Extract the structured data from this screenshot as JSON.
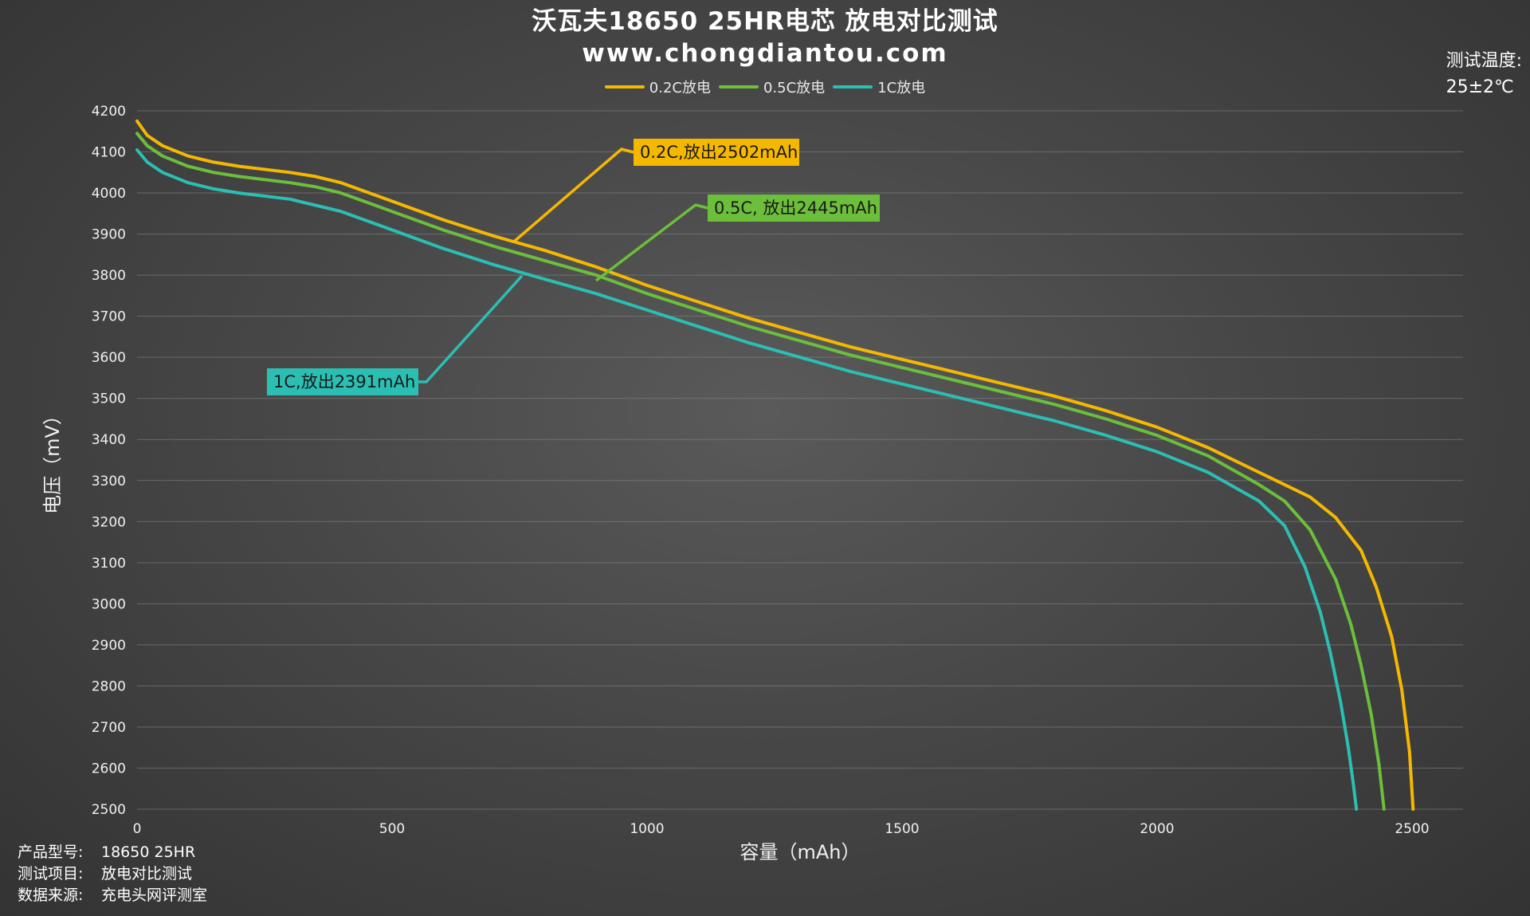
{
  "title": "沃瓦夫18650 25HR电芯 放电对比测试",
  "subtitle": "www.chongdiantou.com",
  "temperature": {
    "label": "测试温度:",
    "value": "25±2℃"
  },
  "info": [
    {
      "label": "产品型号:",
      "value": "18650 25HR"
    },
    {
      "label": "测试项目:",
      "value": "放电对比测试"
    },
    {
      "label": "数据来源:",
      "value": "充电头网评测室"
    }
  ],
  "legend": [
    {
      "name": "0.2C放电",
      "color": "#f5b800"
    },
    {
      "name": "0.5C放电",
      "color": "#6cbf3a"
    },
    {
      "name": "1C放电",
      "color": "#2bbfb3"
    }
  ],
  "annotations": [
    {
      "text": "0.2C,放出2502mAh",
      "series": 0,
      "bg": "#f5b800",
      "fg": "#1a1a1a"
    },
    {
      "text": "0.5C, 放出2445mAh",
      "series": 1,
      "bg": "#6cbf3a",
      "fg": "#1a1a1a"
    },
    {
      "text": "1C,放出2391mAh",
      "series": 2,
      "bg": "#2bbfb3",
      "fg": "#1a1a1a"
    }
  ],
  "chart_data": {
    "type": "line",
    "xlabel": "容量（mAh）",
    "ylabel": "电压（mV）",
    "xlim": [
      0,
      2600
    ],
    "ylim": [
      2500,
      4200
    ],
    "xticks": [
      0,
      500,
      1000,
      1500,
      2000,
      2500
    ],
    "yticks": [
      2500,
      2600,
      2700,
      2800,
      2900,
      3000,
      3100,
      3200,
      3300,
      3400,
      3500,
      3600,
      3700,
      3800,
      3900,
      4000,
      4100,
      4200
    ],
    "grid": true,
    "legend_position": "top",
    "series": [
      {
        "name": "0.2C放电",
        "color": "#f5b800",
        "x": [
          0,
          20,
          50,
          100,
          150,
          200,
          300,
          350,
          400,
          500,
          600,
          700,
          800,
          900,
          1000,
          1100,
          1200,
          1300,
          1400,
          1500,
          1600,
          1700,
          1800,
          1900,
          2000,
          2100,
          2200,
          2250,
          2300,
          2350,
          2400,
          2430,
          2460,
          2480,
          2495,
          2502
        ],
        "y": [
          4175,
          4140,
          4115,
          4090,
          4075,
          4065,
          4050,
          4040,
          4025,
          3980,
          3935,
          3895,
          3860,
          3820,
          3775,
          3735,
          3695,
          3660,
          3625,
          3595,
          3565,
          3535,
          3505,
          3470,
          3430,
          3380,
          3320,
          3290,
          3260,
          3210,
          3130,
          3040,
          2920,
          2790,
          2640,
          2500
        ]
      },
      {
        "name": "0.5C放电",
        "color": "#6cbf3a",
        "x": [
          0,
          20,
          50,
          100,
          150,
          200,
          300,
          350,
          400,
          500,
          600,
          700,
          800,
          900,
          1000,
          1100,
          1200,
          1300,
          1400,
          1500,
          1600,
          1700,
          1800,
          1900,
          2000,
          2100,
          2200,
          2250,
          2300,
          2350,
          2380,
          2400,
          2420,
          2435,
          2445
        ],
        "y": [
          4145,
          4115,
          4090,
          4065,
          4050,
          4040,
          4025,
          4015,
          4000,
          3955,
          3910,
          3870,
          3835,
          3800,
          3755,
          3715,
          3675,
          3640,
          3605,
          3575,
          3545,
          3515,
          3485,
          3450,
          3410,
          3360,
          3290,
          3250,
          3180,
          3060,
          2950,
          2850,
          2730,
          2610,
          2500
        ]
      },
      {
        "name": "1C放电",
        "color": "#2bbfb3",
        "x": [
          0,
          20,
          50,
          100,
          150,
          200,
          300,
          350,
          400,
          500,
          600,
          700,
          800,
          900,
          1000,
          1100,
          1200,
          1300,
          1400,
          1500,
          1600,
          1700,
          1800,
          1900,
          2000,
          2100,
          2200,
          2250,
          2290,
          2320,
          2340,
          2360,
          2375,
          2385,
          2391
        ],
        "y": [
          4105,
          4075,
          4050,
          4025,
          4010,
          4000,
          3985,
          3970,
          3955,
          3910,
          3865,
          3825,
          3790,
          3755,
          3715,
          3675,
          3635,
          3600,
          3565,
          3535,
          3505,
          3475,
          3445,
          3410,
          3370,
          3320,
          3250,
          3190,
          3090,
          2980,
          2880,
          2760,
          2650,
          2560,
          2500
        ]
      }
    ]
  }
}
